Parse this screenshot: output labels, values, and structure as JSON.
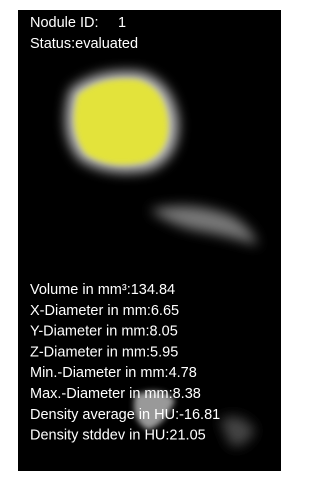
{
  "header": {
    "id_label": "Nodule ID:",
    "id_value": "1",
    "status": "Status:evaluated"
  },
  "measurements": [
    {
      "label": "Volume in mm³:",
      "value": "134.84"
    },
    {
      "label": "X-Diameter in mm:",
      "value": "6.65"
    },
    {
      "label": "Y-Diameter in mm:",
      "value": "8.05"
    },
    {
      "label": "Z-Diameter in mm:",
      "value": "5.95"
    },
    {
      "label": "Min.-Diameter in mm:",
      "value": "4.78"
    },
    {
      "label": "Max.-Diameter in mm:",
      "value": "8.38"
    },
    {
      "label": "Density average in HU:",
      "value": "-16.81"
    },
    {
      "label": "Density stddev in HU:",
      "value": "21.05"
    }
  ]
}
